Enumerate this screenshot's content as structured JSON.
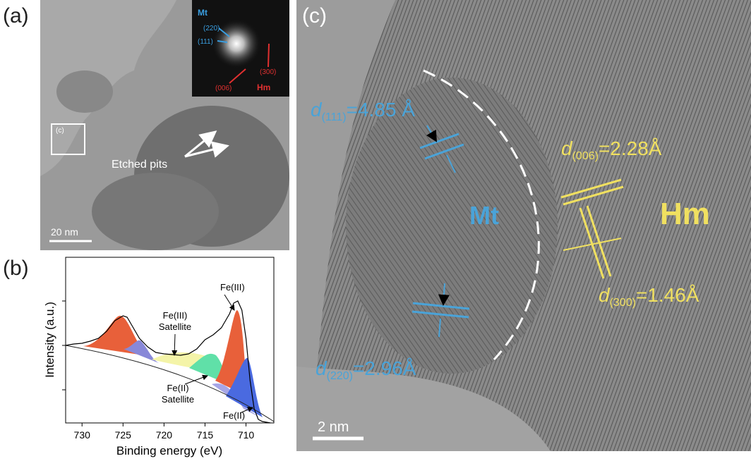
{
  "panel_a": {
    "label": "(a)",
    "inset": {
      "mt": "Mt",
      "p220": "(220)",
      "p111": "(111)",
      "p300": "(300)",
      "p006": "(006)",
      "hm": "Hm"
    },
    "box_label": "(c)",
    "annotation": "Etched pits",
    "scale_bar": "20 nm"
  },
  "panel_b": {
    "label": "(b)"
  },
  "chart_data": {
    "type": "line",
    "x_label": "Binding energy (eV)",
    "y_label": "Intensity (a.u.)",
    "xlim": [
      732,
      706.6
    ],
    "xticks": [
      730,
      725,
      720,
      715,
      710
    ],
    "ylim": [
      0,
      235
    ],
    "x": [
      732,
      731,
      730,
      729,
      728,
      727,
      726,
      725,
      724.5,
      724,
      723,
      722,
      721,
      720,
      719,
      718,
      717,
      716,
      715,
      714,
      713,
      712,
      711.5,
      711,
      710.5,
      710,
      709.5,
      709,
      708.5,
      708,
      707
    ],
    "series": [
      {
        "color": "#000000",
        "values": [
          110,
          112,
          113,
          116,
          120,
          130,
          145,
          152,
          150,
          140,
          120,
          108,
          100,
          98,
          97,
          96,
          98,
          105,
          118,
          125,
          135,
          155,
          170,
          173,
          160,
          120,
          60,
          20,
          5,
          2,
          0
        ]
      }
    ],
    "annotations": [
      [
        "Fe(III)"
      ],
      [
        "Fe(III)",
        "Satellite"
      ],
      [
        "Fe(II)",
        "Satellite"
      ],
      [
        "Fe(II)"
      ]
    ]
  },
  "panel_c": {
    "label": "(c)",
    "mt": "Mt",
    "hm": "Hm",
    "scale_bar": "2 nm",
    "d111": {
      "symbol": "d",
      "index": "(111)",
      "value": "=4.85 Å"
    },
    "d006": {
      "symbol": "d",
      "index": "(006)",
      "value": "=2.28Å"
    },
    "d300": {
      "symbol": "d",
      "index": "(300)",
      "value": "=1.46Å"
    },
    "d220": {
      "symbol": "d",
      "index": "(220)",
      "value": "=2.96Å"
    }
  }
}
